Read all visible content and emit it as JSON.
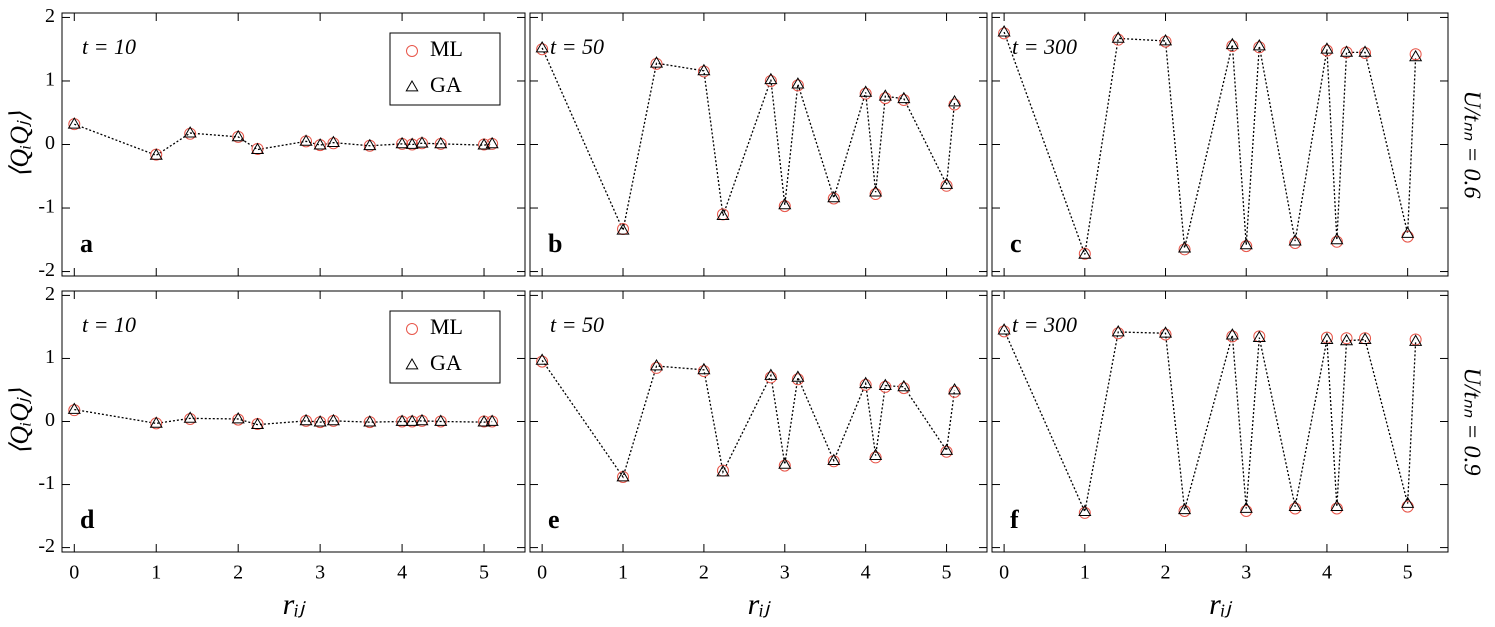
{
  "chart_data": [
    {
      "type": "scatter",
      "annotation": "t = 10",
      "panel_label": "a",
      "ylabel": "⟨QᵢQⱼ⟩",
      "legend": "upper right",
      "x": [
        0,
        1,
        1.414,
        2,
        2.236,
        2.828,
        3,
        3.162,
        3.606,
        4,
        4.123,
        4.243,
        4.472,
        5,
        5.099
      ],
      "series": [
        {
          "name": "ML",
          "color": "#e8564a",
          "marker": "circle",
          "values": [
            0.32,
            -0.16,
            0.17,
            0.12,
            -0.07,
            0.05,
            -0.01,
            0.02,
            -0.02,
            0.01,
            0.0,
            0.02,
            0.01,
            0.0,
            0.01
          ]
        },
        {
          "name": "GA",
          "color": "#000000",
          "marker": "triangle",
          "values": [
            0.32,
            -0.17,
            0.18,
            0.12,
            -0.08,
            0.05,
            -0.01,
            0.03,
            -0.02,
            0.01,
            0.0,
            0.02,
            0.01,
            -0.01,
            0.01
          ]
        }
      ],
      "xlim": [
        -0.15,
        5.5
      ],
      "ylim": [
        -2.07,
        2.07
      ],
      "xticks": [
        0,
        1,
        2,
        3,
        4,
        5
      ],
      "yticks": [
        -2,
        -1,
        0,
        1,
        2
      ]
    },
    {
      "type": "scatter",
      "annotation": "t = 50",
      "panel_label": "b",
      "x": [
        0,
        1,
        1.414,
        2,
        2.236,
        2.828,
        3,
        3.162,
        3.606,
        4,
        4.123,
        4.243,
        4.472,
        5,
        5.099
      ],
      "series": [
        {
          "color": "#e8564a",
          "marker": "circle",
          "values": [
            1.5,
            -1.33,
            1.27,
            1.15,
            -1.1,
            1.0,
            -0.97,
            0.93,
            -0.85,
            0.8,
            -0.78,
            0.73,
            0.7,
            -0.65,
            0.63
          ]
        },
        {
          "color": "#000000",
          "marker": "triangle",
          "values": [
            1.52,
            -1.35,
            1.28,
            1.16,
            -1.12,
            1.02,
            -0.95,
            0.95,
            -0.84,
            0.82,
            -0.75,
            0.76,
            0.72,
            -0.63,
            0.67
          ]
        }
      ],
      "xlim": [
        -0.15,
        5.5
      ],
      "ylim": [
        -2.07,
        2.07
      ],
      "xticks": [
        0,
        1,
        2,
        3,
        4,
        5
      ],
      "yticks": [
        -2,
        -1,
        0,
        1,
        2
      ]
    },
    {
      "type": "scatter",
      "annotation": "t = 300",
      "panel_label": "c",
      "row_label": "U/tₙₙ = 0.6",
      "x": [
        0,
        1,
        1.414,
        2,
        2.236,
        2.828,
        3,
        3.162,
        3.606,
        4,
        4.123,
        4.243,
        4.472,
        5,
        5.099
      ],
      "series": [
        {
          "color": "#e8564a",
          "marker": "circle",
          "values": [
            1.75,
            -1.72,
            1.65,
            1.62,
            -1.65,
            1.55,
            -1.6,
            1.53,
            -1.55,
            1.48,
            -1.53,
            1.45,
            1.44,
            -1.45,
            1.42
          ]
        },
        {
          "color": "#000000",
          "marker": "triangle",
          "values": [
            1.77,
            -1.73,
            1.67,
            1.63,
            -1.63,
            1.57,
            -1.58,
            1.55,
            -1.52,
            1.5,
            -1.5,
            1.45,
            1.45,
            -1.4,
            1.38
          ]
        }
      ],
      "xlim": [
        -0.15,
        5.5
      ],
      "ylim": [
        -2.07,
        2.07
      ],
      "xticks": [
        0,
        1,
        2,
        3,
        4,
        5
      ],
      "yticks": [
        -2,
        -1,
        0,
        1,
        2
      ]
    },
    {
      "type": "scatter",
      "annotation": "t = 10",
      "panel_label": "d",
      "ylabel": "⟨QᵢQⱼ⟩",
      "xlabel": "rᵢⱼ",
      "legend": "upper right",
      "x": [
        0,
        1,
        1.414,
        2,
        2.236,
        2.828,
        3,
        3.162,
        3.606,
        4,
        4.123,
        4.243,
        4.472,
        5,
        5.099
      ],
      "series": [
        {
          "name": "ML",
          "color": "#e8564a",
          "marker": "circle",
          "values": [
            0.18,
            -0.03,
            0.04,
            0.03,
            -0.04,
            0.01,
            -0.01,
            0.01,
            -0.01,
            0.0,
            0.0,
            0.01,
            0.0,
            0.0,
            0.0
          ]
        },
        {
          "name": "GA",
          "color": "#000000",
          "marker": "triangle",
          "values": [
            0.19,
            -0.03,
            0.05,
            0.04,
            -0.05,
            0.01,
            -0.01,
            0.01,
            -0.01,
            0.0,
            0.0,
            0.01,
            0.0,
            -0.01,
            0.0
          ]
        }
      ],
      "xlim": [
        -0.15,
        5.5
      ],
      "ylim": [
        -2.07,
        2.07
      ],
      "xticks": [
        0,
        1,
        2,
        3,
        4,
        5
      ],
      "yticks": [
        -2,
        -1,
        0,
        1,
        2
      ]
    },
    {
      "type": "scatter",
      "annotation": "t = 50",
      "panel_label": "e",
      "xlabel": "rᵢⱼ",
      "x": [
        0,
        1,
        1.414,
        2,
        2.236,
        2.828,
        3,
        3.162,
        3.606,
        4,
        4.123,
        4.243,
        4.472,
        5,
        5.099
      ],
      "series": [
        {
          "color": "#e8564a",
          "marker": "circle",
          "values": [
            0.95,
            -0.88,
            0.85,
            0.8,
            -0.78,
            0.7,
            -0.7,
            0.67,
            -0.63,
            0.58,
            -0.57,
            0.55,
            0.53,
            -0.48,
            0.47
          ]
        },
        {
          "color": "#000000",
          "marker": "triangle",
          "values": [
            0.97,
            -0.88,
            0.88,
            0.82,
            -0.8,
            0.73,
            -0.68,
            0.7,
            -0.62,
            0.6,
            -0.54,
            0.57,
            0.55,
            -0.46,
            0.5
          ]
        }
      ],
      "xlim": [
        -0.15,
        5.5
      ],
      "ylim": [
        -2.07,
        2.07
      ],
      "xticks": [
        0,
        1,
        2,
        3,
        4,
        5
      ],
      "yticks": [
        -2,
        -1,
        0,
        1,
        2
      ]
    },
    {
      "type": "scatter",
      "annotation": "t = 300",
      "panel_label": "f",
      "xlabel": "rᵢⱼ",
      "row_label": "U/tₙₙ = 0.9",
      "x": [
        0,
        1,
        1.414,
        2,
        2.236,
        2.828,
        3,
        3.162,
        3.606,
        4,
        4.123,
        4.243,
        4.472,
        5,
        5.099
      ],
      "series": [
        {
          "color": "#e8564a",
          "marker": "circle",
          "values": [
            1.43,
            -1.45,
            1.4,
            1.38,
            -1.42,
            1.35,
            -1.42,
            1.35,
            -1.38,
            1.33,
            -1.38,
            1.32,
            1.32,
            -1.35,
            1.3
          ]
        },
        {
          "color": "#000000",
          "marker": "triangle",
          "values": [
            1.45,
            -1.43,
            1.42,
            1.4,
            -1.4,
            1.37,
            -1.38,
            1.33,
            -1.35,
            1.3,
            -1.35,
            1.28,
            1.3,
            -1.3,
            1.27
          ]
        }
      ],
      "xlim": [
        -0.15,
        5.5
      ],
      "ylim": [
        -2.07,
        2.07
      ],
      "xticks": [
        0,
        1,
        2,
        3,
        4,
        5
      ],
      "yticks": [
        -2,
        -1,
        0,
        1,
        2
      ]
    }
  ]
}
